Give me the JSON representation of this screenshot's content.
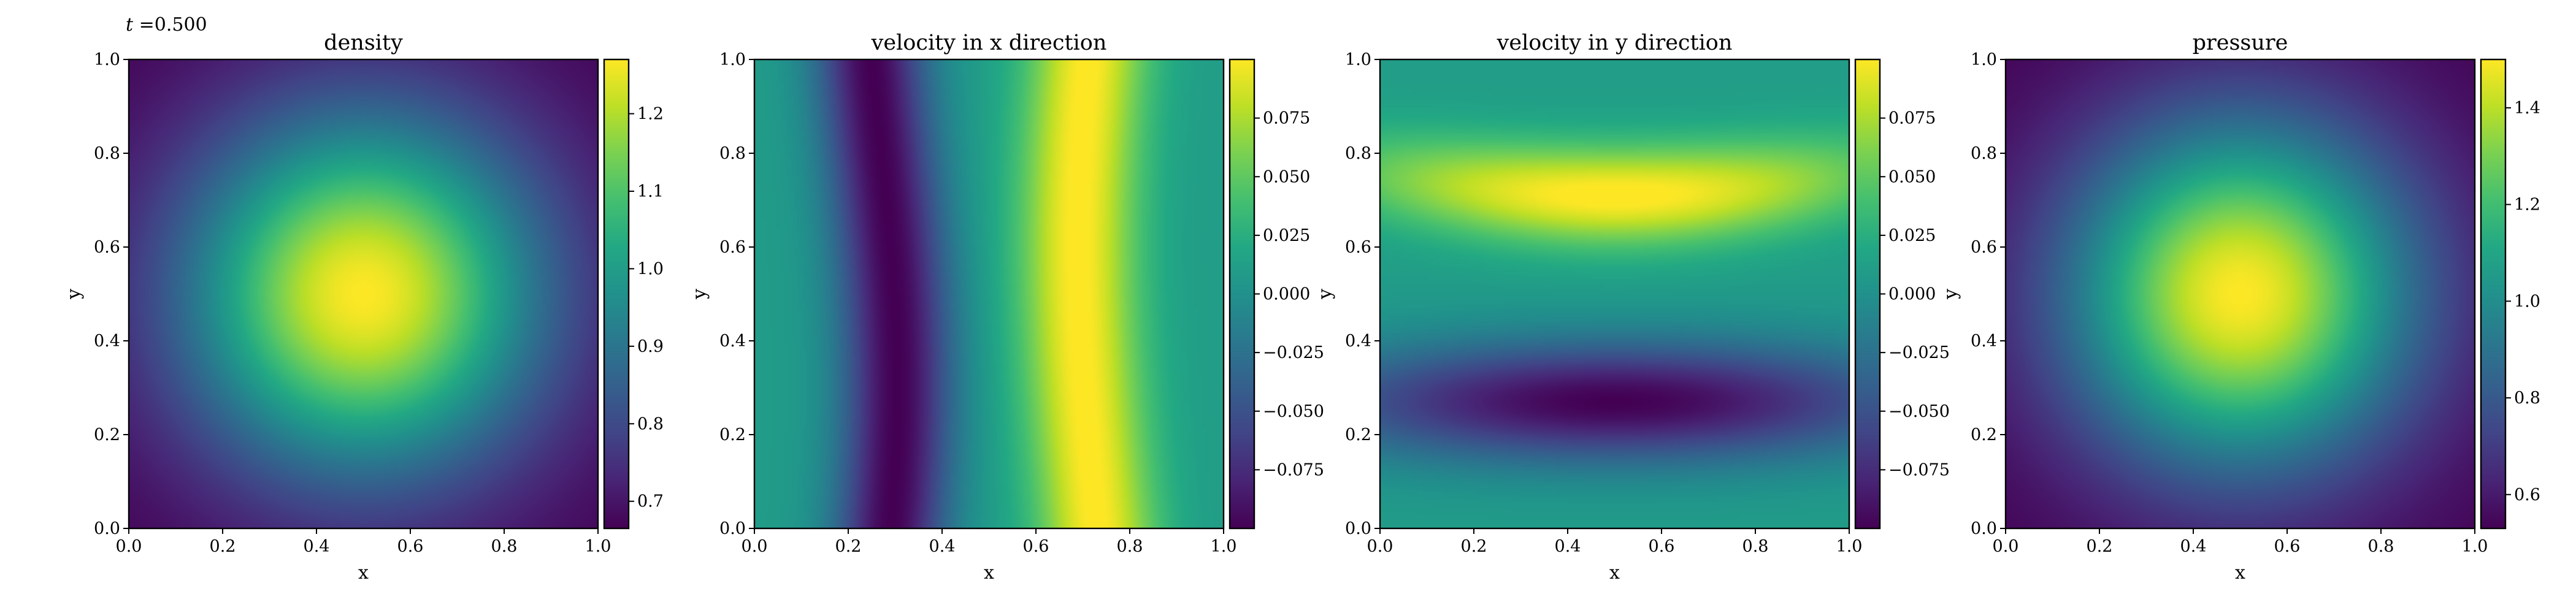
{
  "time_label": {
    "symbol": "t",
    "text": " =0.500"
  },
  "colormap": "viridis",
  "colors": {
    "viridis": [
      "#440154",
      "#482475",
      "#414487",
      "#355f8d",
      "#2a788e",
      "#21918c",
      "#22a884",
      "#44bf70",
      "#7ad151",
      "#bddf26",
      "#fde725"
    ]
  },
  "chart_data": [
    {
      "type": "heatmap",
      "title": "density",
      "xlabel": "x",
      "ylabel": "y",
      "xlim": [
        0,
        1
      ],
      "ylim": [
        0,
        1
      ],
      "xticks": [
        "0.0",
        "0.2",
        "0.4",
        "0.6",
        "0.8",
        "1.0"
      ],
      "yticks": [
        "0.0",
        "0.2",
        "0.4",
        "0.6",
        "0.8",
        "1.0"
      ],
      "colorbar": {
        "range": [
          0.665,
          1.27
        ],
        "ticks": [
          0.7,
          0.8,
          0.9,
          1.0,
          1.1,
          1.2
        ],
        "tick_labels": [
          "0.7",
          "0.8",
          "0.9",
          "1.0",
          "1.1",
          "1.2"
        ]
      },
      "field": "radial peak at (0.5, 0.5), decreasing toward the corners"
    },
    {
      "type": "heatmap",
      "title": "velocity in x direction",
      "xlabel": "x",
      "ylabel": "y",
      "xlim": [
        0,
        1
      ],
      "ylim": [
        0,
        1
      ],
      "xticks": [
        "0.0",
        "0.2",
        "0.4",
        "0.6",
        "0.8",
        "1.0"
      ],
      "yticks": [
        "0.0",
        "0.2",
        "0.4",
        "0.6",
        "0.8",
        "1.0"
      ],
      "colorbar": {
        "range": [
          -0.1,
          0.1
        ],
        "ticks": [
          -0.075,
          -0.05,
          -0.025,
          0.0,
          0.025,
          0.05,
          0.075
        ],
        "tick_labels": [
          "−0.075",
          "−0.050",
          "−0.025",
          "0.000",
          "0.025",
          "0.050",
          "0.075"
        ]
      },
      "field": "vertical bands: minimum near x = 0.27, maximum near x = 0.72"
    },
    {
      "type": "heatmap",
      "title": "velocity in y direction",
      "xlabel": "x",
      "ylabel": "y",
      "xlim": [
        0,
        1
      ],
      "ylim": [
        0,
        1
      ],
      "xticks": [
        "0.0",
        "0.2",
        "0.4",
        "0.6",
        "0.8",
        "1.0"
      ],
      "yticks": [
        "0.0",
        "0.2",
        "0.4",
        "0.6",
        "0.8",
        "1.0"
      ],
      "colorbar": {
        "range": [
          -0.1,
          0.1
        ],
        "ticks": [
          -0.075,
          -0.05,
          -0.025,
          0.0,
          0.025,
          0.05,
          0.075
        ],
        "tick_labels": [
          "−0.075",
          "−0.050",
          "−0.025",
          "0.000",
          "0.025",
          "0.050",
          "0.075"
        ]
      },
      "field": "horizontal bands: minimum near y = 0.27, maximum near y = 0.75"
    },
    {
      "type": "heatmap",
      "title": "pressure",
      "xlabel": "x",
      "ylabel": "y",
      "xlim": [
        0,
        1
      ],
      "ylim": [
        0,
        1
      ],
      "xticks": [
        "0.0",
        "0.2",
        "0.4",
        "0.6",
        "0.8",
        "1.0"
      ],
      "yticks": [
        "0.0",
        "0.2",
        "0.4",
        "0.6",
        "0.8",
        "1.0"
      ],
      "colorbar": {
        "range": [
          0.53,
          1.5
        ],
        "ticks": [
          0.6,
          0.8,
          1.0,
          1.2,
          1.4
        ],
        "tick_labels": [
          "0.6",
          "0.8",
          "1.0",
          "1.2",
          "1.4"
        ]
      },
      "field": "radial peak at (0.5, 0.5), decreasing toward the corners"
    }
  ]
}
